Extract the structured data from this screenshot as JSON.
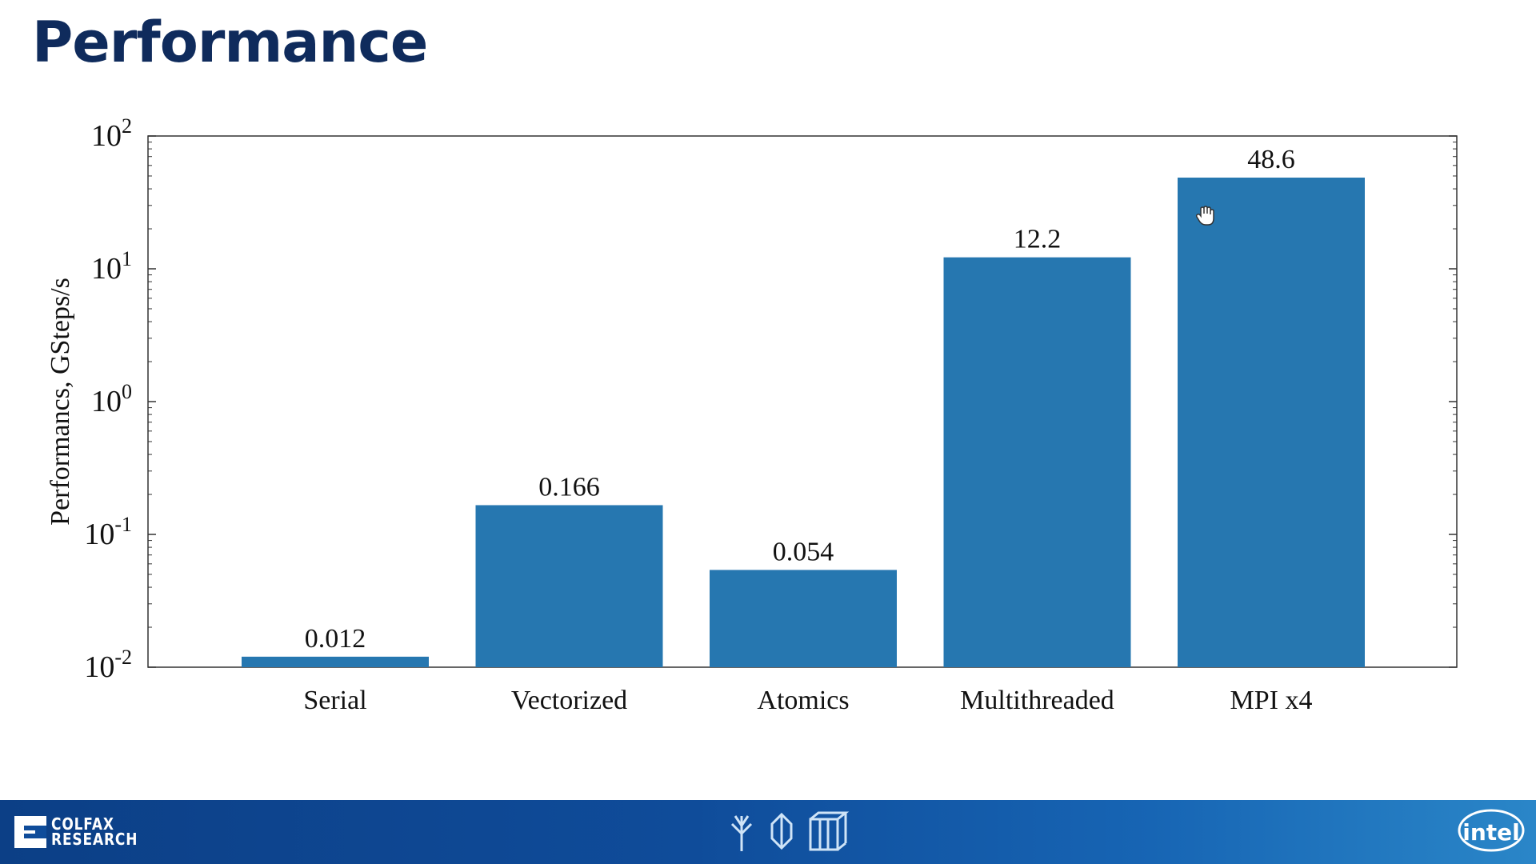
{
  "slide": {
    "title": "Performance"
  },
  "footer": {
    "logo_line1": "COLFAX",
    "logo_line2": "RESEARCH",
    "brand_right": "intel"
  },
  "chart_data": {
    "type": "bar",
    "title": "",
    "xlabel": "",
    "ylabel": "Performancs, GSteps/s",
    "yscale": "log",
    "ylim": [
      0.01,
      100
    ],
    "yticks": [
      {
        "value": 0.01,
        "base": "10",
        "exp": "-2"
      },
      {
        "value": 0.1,
        "base": "10",
        "exp": "-1"
      },
      {
        "value": 1,
        "base": "10",
        "exp": "0"
      },
      {
        "value": 10,
        "base": "10",
        "exp": "1"
      },
      {
        "value": 100,
        "base": "10",
        "exp": "2"
      }
    ],
    "categories": [
      "Serial",
      "Vectorized",
      "Atomics",
      "Multithreaded",
      "MPI x4"
    ],
    "values": [
      0.012,
      0.166,
      0.054,
      12.2,
      48.6
    ],
    "value_labels": [
      "0.012",
      "0.166",
      "0.054",
      "12.2",
      "48.6"
    ],
    "bar_color": "#2677b0",
    "grid": false
  }
}
